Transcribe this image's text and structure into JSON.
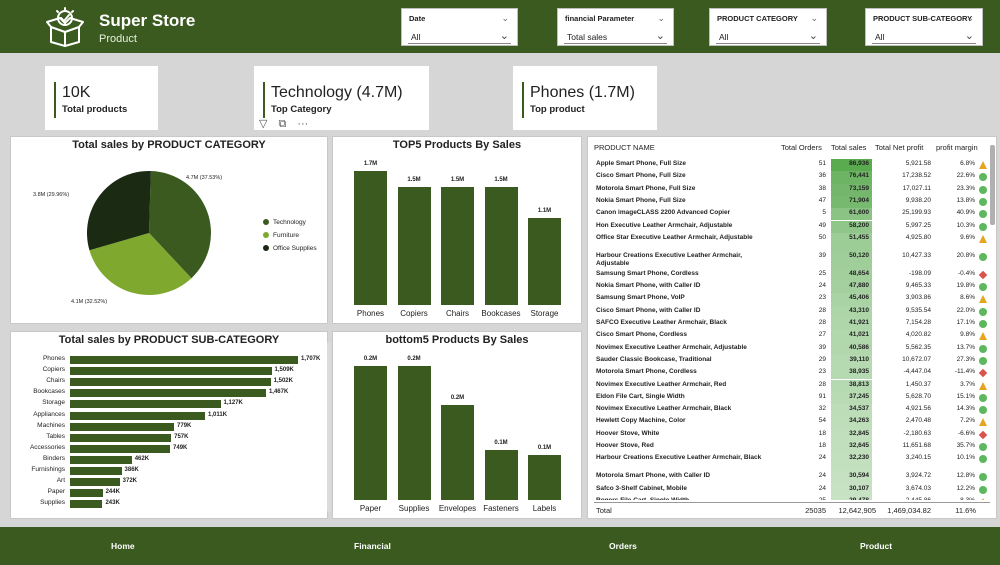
{
  "header": {
    "title": "Super Store",
    "subtitle": "Product",
    "logo_icon": "open-box-check-icon",
    "bg_color": "#3a5a1f"
  },
  "filters": [
    {
      "label": "Date",
      "value": "All"
    },
    {
      "label": "financial Parameter",
      "value": "Total sales"
    },
    {
      "label": "PRODUCT CATEGORY",
      "value": "All"
    },
    {
      "label": "PRODUCT SUB-CATEGORY",
      "value": "All"
    }
  ],
  "kpis": [
    {
      "value": "10K",
      "label": "Total products"
    },
    {
      "value": "Technology (4.7M)",
      "label": "Top Category"
    },
    {
      "value": "Phones (1.7M)",
      "label": "Top product"
    }
  ],
  "visual_toolbar": {
    "icons": [
      "filter-icon",
      "focus-mode-icon",
      "more-options-icon"
    ],
    "more_label": "···"
  },
  "category_chart": {
    "title": "Total sales by PRODUCT CATEGORY",
    "labels": [
      "4.7M (37.53%)",
      "4.1M (32.52%)",
      "3.8M (29.96%)"
    ]
  },
  "top5": {
    "title": "TOP5 Products By Sales"
  },
  "bottom5": {
    "title": "bottom5 Products By Sales"
  },
  "subcat": {
    "title": "Total sales by PRODUCT SUB-CATEGORY"
  },
  "chart_data": [
    {
      "type": "pie",
      "title": "Total sales by PRODUCT CATEGORY",
      "series": [
        {
          "name": "Technology",
          "value": 4.7,
          "percent": 37.53,
          "label": "4.7M (37.53%)",
          "color": "#3a5a1f"
        },
        {
          "name": "Furniture",
          "value": 4.1,
          "percent": 32.52,
          "label": "4.1M (32.52%)",
          "color": "#7fa82e"
        },
        {
          "name": "Office Supplies",
          "value": 3.8,
          "percent": 29.96,
          "label": "3.8M (29.96%)",
          "color": "#1b2a12"
        }
      ],
      "legend": "right"
    },
    {
      "type": "bar",
      "title": "TOP5 Products By Sales",
      "categories": [
        "Phones",
        "Copiers",
        "Chairs",
        "Bookcases",
        "Storage"
      ],
      "values": [
        1.7,
        1.5,
        1.5,
        1.5,
        1.1
      ],
      "labels": [
        "1.7M",
        "1.5M",
        "1.5M",
        "1.5M",
        "1.1M"
      ]
    },
    {
      "type": "bar",
      "title": "Total sales by PRODUCT SUB-CATEGORY",
      "orientation": "horizontal",
      "categories": [
        "Phones",
        "Copiers",
        "Chairs",
        "Bookcases",
        "Storage",
        "Appliances",
        "Machines",
        "Tables",
        "Accessories",
        "Binders",
        "Furnishings",
        "Art",
        "Paper",
        "Supplies"
      ],
      "values": [
        1707,
        1509,
        1502,
        1467,
        1127,
        1011,
        779,
        757,
        749,
        462,
        386,
        372,
        244,
        243
      ],
      "labels": [
        "1,707K",
        "1,509K",
        "1,502K",
        "1,467K",
        "1,127K",
        "1,011K",
        "779K",
        "757K",
        "749K",
        "462K",
        "386K",
        "372K",
        "244K",
        "243K"
      ]
    },
    {
      "type": "bar",
      "title": "bottom5 Products By Sales",
      "categories": [
        "Paper",
        "Supplies",
        "Envelopes",
        "Fasteners",
        "Labels"
      ],
      "values": [
        0.24,
        0.24,
        0.17,
        0.09,
        0.08
      ],
      "labels": [
        "0.2M",
        "0.2M",
        "0.2M",
        "0.1M",
        "0.1M"
      ]
    }
  ],
  "table": {
    "headers": [
      "PRODUCT NAME",
      "Total Orders",
      "Total sales",
      "Total Net profit",
      "profit margin"
    ],
    "rows": [
      {
        "name": "Apple Smart Phone, Full Size",
        "orders": "51",
        "sales": "86,936",
        "profit": "5,921.58",
        "margin": "6.8%",
        "status": "warning"
      },
      {
        "name": "Cisco Smart Phone, Full Size",
        "orders": "36",
        "sales": "76,441",
        "profit": "17,238.52",
        "margin": "22.6%",
        "status": "good"
      },
      {
        "name": "Motorola Smart Phone, Full Size",
        "orders": "38",
        "sales": "73,159",
        "profit": "17,027.11",
        "margin": "23.3%",
        "status": "good"
      },
      {
        "name": "Nokia Smart Phone, Full Size",
        "orders": "47",
        "sales": "71,904",
        "profit": "9,938.20",
        "margin": "13.8%",
        "status": "good"
      },
      {
        "name": "Canon imageCLASS 2200 Advanced Copier",
        "orders": "5",
        "sales": "61,600",
        "profit": "25,199.93",
        "margin": "40.9%",
        "status": "good"
      },
      {
        "name": "Hon Executive Leather Armchair, Adjustable",
        "orders": "49",
        "sales": "58,200",
        "profit": "5,997.25",
        "margin": "10.3%",
        "status": "good"
      },
      {
        "name": "Office Star Executive Leather Armchair, Adjustable",
        "orders": "50",
        "sales": "51,455",
        "profit": "4,925.80",
        "margin": "9.6%",
        "status": "warning"
      },
      {
        "name": "Harbour Creations Executive Leather Armchair, Adjustable",
        "orders": "39",
        "sales": "50,120",
        "profit": "10,427.33",
        "margin": "20.8%",
        "status": "good"
      },
      {
        "name": "Samsung Smart Phone, Cordless",
        "orders": "25",
        "sales": "48,654",
        "profit": "-198.09",
        "margin": "-0.4%",
        "status": "bad"
      },
      {
        "name": "Nokia Smart Phone, with Caller ID",
        "orders": "24",
        "sales": "47,880",
        "profit": "9,465.33",
        "margin": "19.8%",
        "status": "good"
      },
      {
        "name": "Samsung Smart Phone, VoIP",
        "orders": "23",
        "sales": "45,406",
        "profit": "3,903.86",
        "margin": "8.6%",
        "status": "warning"
      },
      {
        "name": "Cisco Smart Phone, with Caller ID",
        "orders": "28",
        "sales": "43,310",
        "profit": "9,535.54",
        "margin": "22.0%",
        "status": "good"
      },
      {
        "name": "SAFCO Executive Leather Armchair, Black",
        "orders": "28",
        "sales": "41,921",
        "profit": "7,154.28",
        "margin": "17.1%",
        "status": "good"
      },
      {
        "name": "Cisco Smart Phone, Cordless",
        "orders": "27",
        "sales": "41,021",
        "profit": "4,020.82",
        "margin": "9.8%",
        "status": "warning"
      },
      {
        "name": "Novimex Executive Leather Armchair, Adjustable",
        "orders": "39",
        "sales": "40,586",
        "profit": "5,562.35",
        "margin": "13.7%",
        "status": "good"
      },
      {
        "name": "Sauder Classic Bookcase, Traditional",
        "orders": "29",
        "sales": "39,110",
        "profit": "10,672.07",
        "margin": "27.3%",
        "status": "good"
      },
      {
        "name": "Motorola Smart Phone, Cordless",
        "orders": "23",
        "sales": "38,935",
        "profit": "-4,447.04",
        "margin": "-11.4%",
        "status": "bad"
      },
      {
        "name": "Novimex Executive Leather Armchair, Red",
        "orders": "28",
        "sales": "38,813",
        "profit": "1,450.37",
        "margin": "3.7%",
        "status": "warning"
      },
      {
        "name": "Eldon File Cart, Single Width",
        "orders": "91",
        "sales": "37,245",
        "profit": "5,628.70",
        "margin": "15.1%",
        "status": "good"
      },
      {
        "name": "Novimex Executive Leather Armchair, Black",
        "orders": "32",
        "sales": "34,537",
        "profit": "4,921.56",
        "margin": "14.3%",
        "status": "good"
      },
      {
        "name": "Hewlett Copy Machine, Color",
        "orders": "54",
        "sales": "34,263",
        "profit": "2,470.48",
        "margin": "7.2%",
        "status": "warning"
      },
      {
        "name": "Hoover Stove, White",
        "orders": "18",
        "sales": "32,845",
        "profit": "-2,180.63",
        "margin": "-6.6%",
        "status": "bad"
      },
      {
        "name": "Hoover Stove, Red",
        "orders": "18",
        "sales": "32,645",
        "profit": "11,651.68",
        "margin": "35.7%",
        "status": "good"
      },
      {
        "name": "Harbour Creations Executive Leather Armchair, Black",
        "orders": "24",
        "sales": "32,230",
        "profit": "3,240.15",
        "margin": "10.1%",
        "status": "good"
      },
      {
        "name": "Motorola Smart Phone, with Caller ID",
        "orders": "24",
        "sales": "30,594",
        "profit": "3,924.72",
        "margin": "12.8%",
        "status": "good"
      },
      {
        "name": "Safco 3-Shelf Cabinet, Mobile",
        "orders": "24",
        "sales": "30,107",
        "profit": "3,674.03",
        "margin": "12.2%",
        "status": "good"
      },
      {
        "name": "Rogers File Cart, Single Width",
        "orders": "25",
        "sales": "29,478",
        "profit": "2,445.86",
        "margin": "8.3%",
        "status": "warning"
      }
    ],
    "total": {
      "label": "Total",
      "orders": "25035",
      "sales": "12,642,905",
      "profit": "1,469,034.82",
      "margin": "11.6%"
    },
    "sales_max": 86936
  },
  "footer": {
    "nav": [
      "Home",
      "Financial",
      "Orders",
      "Product"
    ]
  }
}
